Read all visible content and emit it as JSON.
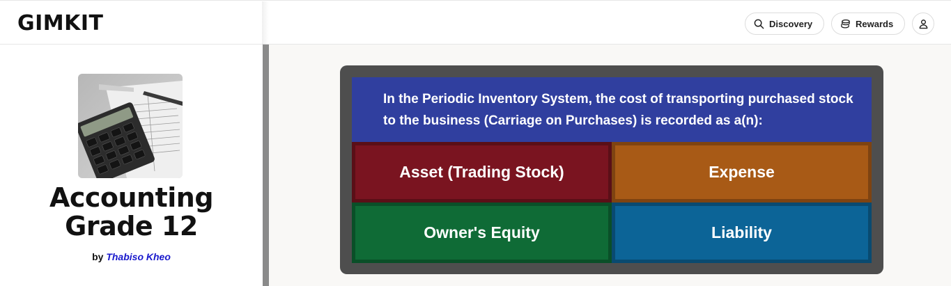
{
  "header": {
    "logo": "GIMKIT",
    "nav": {
      "discovery_label": "Discovery",
      "rewards_label": "Rewards"
    },
    "icons": {
      "discovery": "search-icon",
      "rewards": "coins-icon",
      "profile": "user-icon"
    }
  },
  "kit": {
    "image": "calculator-on-papers-photo",
    "title_line1": "Accounting",
    "title_line2": "Grade 12",
    "by_label": "by",
    "author": "Thabiso Kheo"
  },
  "question": {
    "text": "In the Periodic Inventory System, the cost of transporting purchased stock to the business (Carriage on Purchases) is recorded as a(n):",
    "answers": [
      {
        "label": "Asset (Trading Stock)",
        "color": "#7a1420"
      },
      {
        "label": "Expense",
        "color": "#a85a16"
      },
      {
        "label": "Owner's Equity",
        "color": "#0f6b36"
      },
      {
        "label": "Liability",
        "color": "#0c6497"
      }
    ],
    "background_color": "#303f9f"
  }
}
